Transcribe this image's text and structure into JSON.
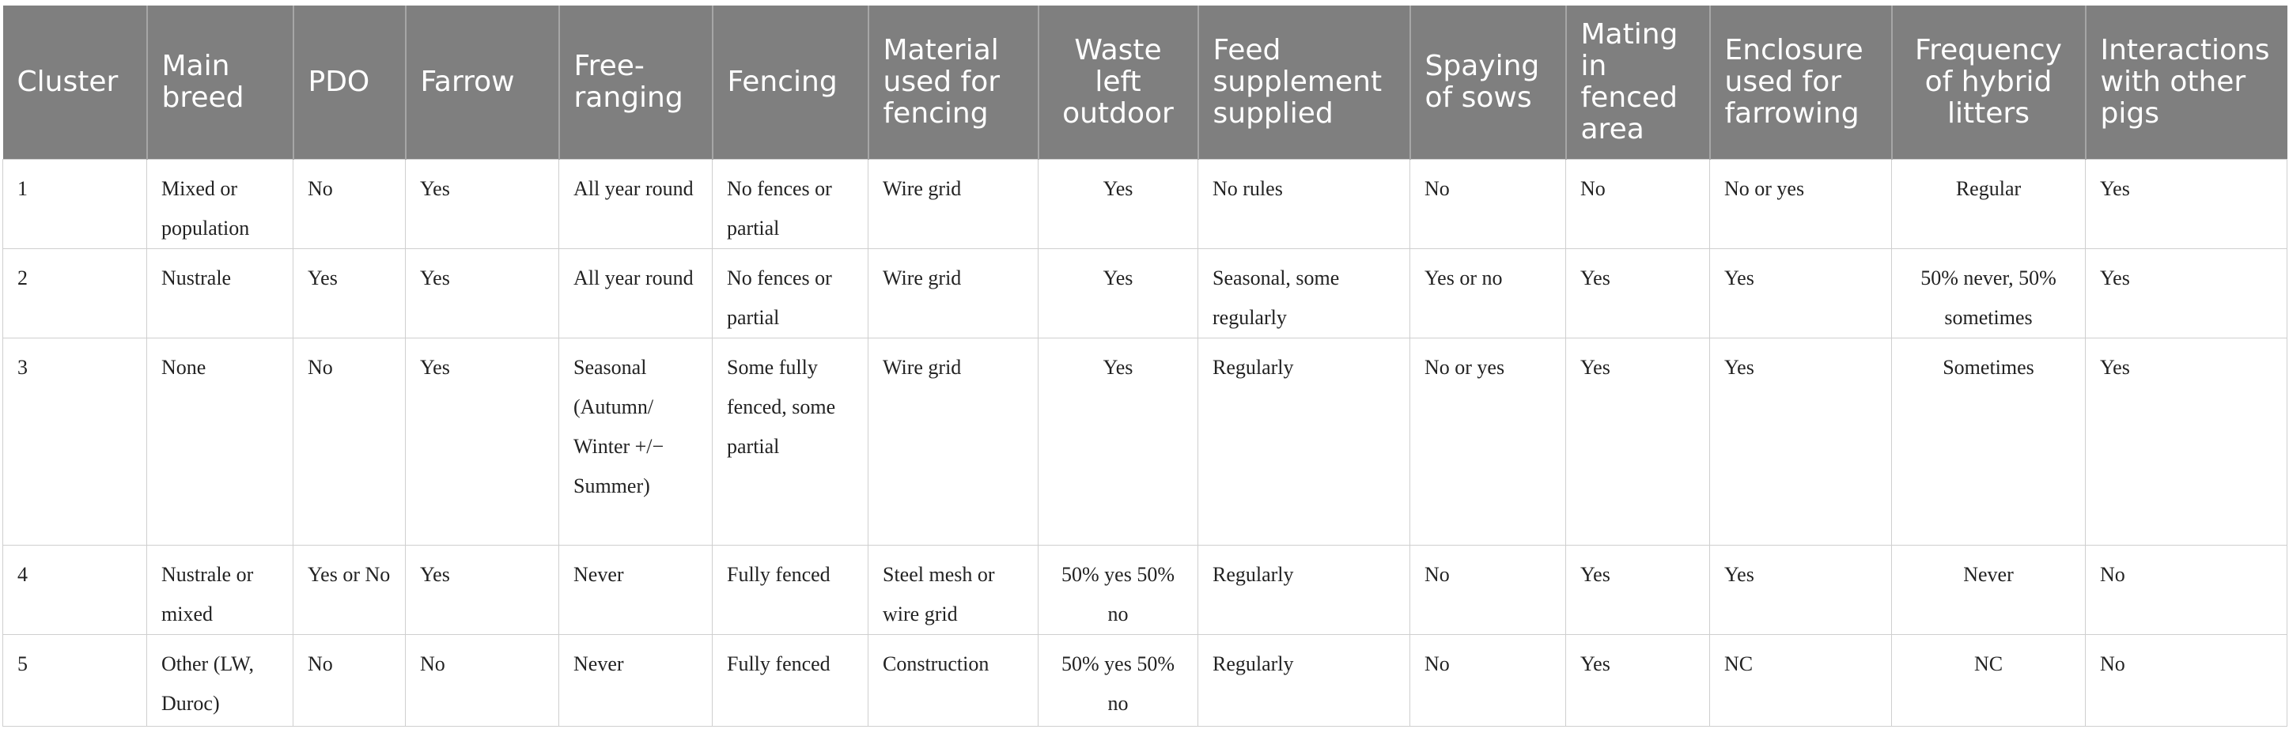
{
  "table": {
    "headers": [
      "Cluster",
      "Main breed",
      "PDO",
      "Farrow",
      "Free-ranging",
      "Fencing",
      "Material used for fencing",
      "Waste left outdoor",
      "Feed supplement supplied",
      "Spaying of sows",
      "Mating in fenced area",
      "Enclosure used for farrowing",
      "Frequency of hybrid litters",
      "Interactions with other pigs"
    ],
    "rows": [
      [
        "1",
        "Mixed or population",
        "No",
        "Yes",
        "All year round",
        "No fences or partial",
        "Wire grid",
        "Yes",
        "No rules",
        "No",
        "No",
        "No or yes",
        "Regular",
        "Yes"
      ],
      [
        "2",
        "Nustrale",
        "Yes",
        "Yes",
        "All year round",
        "No fences or partial",
        "Wire grid",
        "Yes",
        "Seasonal, some regularly",
        "Yes or no",
        "Yes",
        "Yes",
        "50% never, 50% sometimes",
        "Yes"
      ],
      [
        "3",
        "None",
        "No",
        "Yes",
        "Seasonal (Autumn/ Winter +/− Summer)",
        "Some fully fenced, some partial",
        "Wire grid",
        "Yes",
        "Regularly",
        "No or yes",
        "Yes",
        "Yes",
        "Sometimes",
        "Yes"
      ],
      [
        "4",
        "Nustrale or mixed",
        "Yes or No",
        "Yes",
        "Never",
        "Fully fenced",
        "Steel mesh or wire grid",
        "50% yes 50% no",
        "Regularly",
        "No",
        "Yes",
        "Yes",
        "Never",
        "No"
      ],
      [
        "5",
        "Other (LW, Duroc)",
        "No",
        "No",
        "Never",
        "Fully fenced",
        "Construction",
        "50% yes 50% no",
        "Regularly",
        "No",
        "Yes",
        "NC",
        "NC",
        "No"
      ]
    ]
  }
}
